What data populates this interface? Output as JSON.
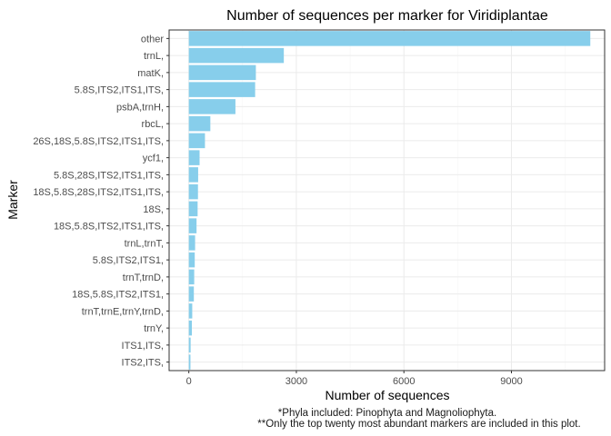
{
  "chart_data": {
    "type": "bar",
    "orientation": "horizontal",
    "title": "Number of sequences per marker for Viridiplantae",
    "xlabel": "Number of sequences",
    "ylabel": "Marker",
    "xlim": [
      -550,
      11600
    ],
    "xticks": [
      0,
      3000,
      6000,
      9000
    ],
    "xtick_labels": [
      "0",
      "3000",
      "6000",
      "9000"
    ],
    "grid": true,
    "bar_color": "#87CEEB",
    "categories": [
      "other",
      "trnL,",
      "matK,",
      "5.8S,ITS2,ITS1,ITS,",
      "psbA,trnH,",
      "rbcL,",
      "26S,18S,5.8S,ITS2,ITS1,ITS,",
      "ycf1,",
      "5.8S,28S,ITS2,ITS1,ITS,",
      "18S,5.8S,28S,ITS2,ITS1,ITS,",
      "18S,",
      "18S,5.8S,ITS2,ITS1,ITS,",
      "trnL,trnT,",
      "5.8S,ITS2,ITS1,",
      "trnT,trnD,",
      "18S,5.8S,ITS2,ITS1,",
      "trnT,trnE,trnY,trnD,",
      "trnY,",
      "ITS1,ITS,",
      "ITS2,ITS,"
    ],
    "values": [
      11200,
      2650,
      1870,
      1850,
      1300,
      600,
      450,
      300,
      260,
      255,
      245,
      215,
      175,
      165,
      150,
      140,
      95,
      85,
      50,
      45
    ]
  },
  "footnotes": {
    "line1": "*Phyla included: Pinophyta and Magnoliophyta.",
    "line2": "**Only the top twenty most abundant markers are included in this plot."
  },
  "colors": {
    "grid_major": "#ebebeb",
    "grid_minor": "#f5f5f5",
    "panel_border": "#333333"
  }
}
